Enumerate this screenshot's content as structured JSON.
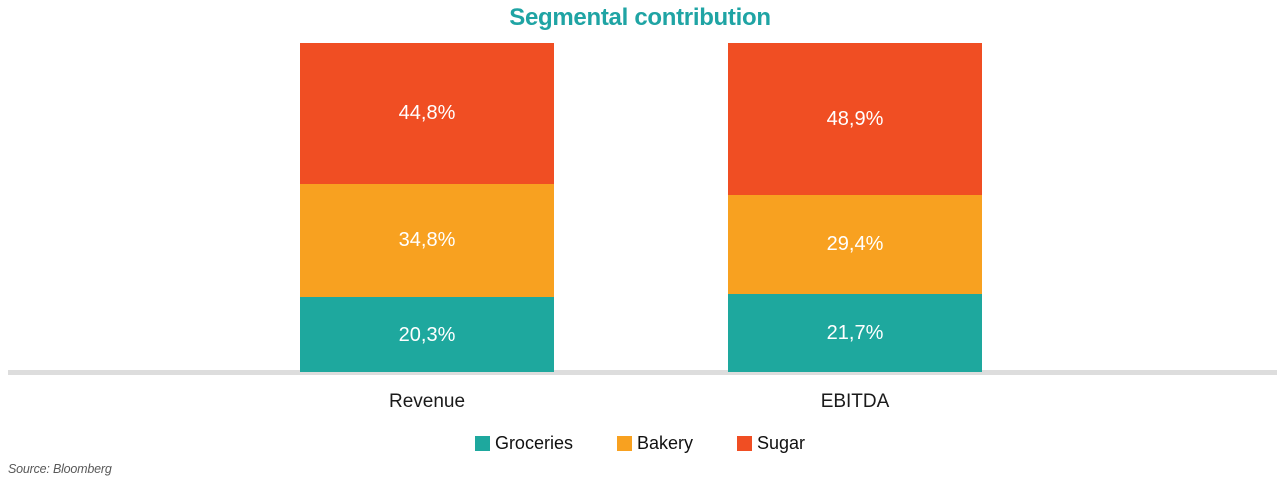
{
  "title": "Segmental contribution",
  "source_note": "Source: Bloomberg",
  "colors": {
    "title_text": "#1FA4A4",
    "baseline": "#DDDDDD",
    "data_label_text": "#FFFFFF",
    "category_text": "#1A1A1A",
    "source_text": "#595959"
  },
  "chart_data": {
    "type": "bar",
    "stacked": true,
    "unit": "%",
    "title": "Segmental contribution",
    "categories": [
      "Revenue",
      "EBITDA"
    ],
    "series": [
      {
        "name": "Groceries",
        "color": "#1EA89E",
        "values": [
          20.3,
          21.7
        ],
        "labels": [
          "20,3%",
          "21,7%"
        ]
      },
      {
        "name": "Bakery",
        "color": "#F8A120",
        "values": [
          34.8,
          29.4
        ],
        "labels": [
          "34,8%",
          "29,4%"
        ]
      },
      {
        "name": "Sugar",
        "color": "#F04E23",
        "values": [
          44.8,
          48.9
        ],
        "labels": [
          "44,8%",
          "48,9%"
        ]
      }
    ],
    "ylim": [
      0,
      100
    ],
    "gridlines": false,
    "legend_position": "bottom",
    "source": "Source: Bloomberg"
  }
}
